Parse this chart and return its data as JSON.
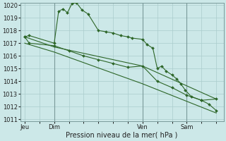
{
  "background_color": "#cce8e8",
  "grid_color": "#aacccc",
  "line_color": "#2d6628",
  "marker_color": "#2d6628",
  "ylabel_min": 1011,
  "ylabel_max": 1020,
  "yticks": [
    1011,
    1012,
    1013,
    1014,
    1015,
    1016,
    1017,
    1018,
    1019,
    1020
  ],
  "xlabel": "Pression niveau de la mer( hPa )",
  "day_labels": [
    "Jeu",
    "Dim",
    "Ven",
    "Sam"
  ],
  "day_positions": [
    0,
    2,
    8,
    11
  ],
  "vline_positions": [
    2,
    8,
    11
  ],
  "series1_x": [
    0,
    0.3,
    2.0,
    2.3,
    2.6,
    2.9,
    3.2,
    3.5,
    3.9,
    4.3,
    5.0,
    5.5,
    6.0,
    6.5,
    7.0,
    7.3,
    8.0,
    8.3,
    8.7,
    9.0,
    9.3,
    9.6,
    10.0,
    10.3,
    10.6,
    10.9,
    11.3,
    12.0,
    12.5,
    13.0
  ],
  "series1_y": [
    1017.5,
    1017.6,
    1017.0,
    1019.5,
    1019.7,
    1019.4,
    1020.1,
    1020.2,
    1019.6,
    1019.3,
    1018.0,
    1017.9,
    1017.8,
    1017.6,
    1017.5,
    1017.4,
    1017.3,
    1016.9,
    1016.6,
    1015.0,
    1015.2,
    1014.8,
    1014.5,
    1014.2,
    1013.8,
    1013.3,
    1012.8,
    1012.5,
    1012.2,
    1011.7
  ],
  "series2_x": [
    0,
    0.3,
    2.0,
    3.0,
    4.0,
    5.0,
    6.0,
    7.0,
    8.0,
    9.0,
    10.0,
    11.0,
    12.0,
    13.0
  ],
  "series2_y": [
    1017.5,
    1017.0,
    1016.8,
    1016.4,
    1016.0,
    1015.7,
    1015.4,
    1015.1,
    1015.2,
    1014.0,
    1013.5,
    1012.9,
    1012.5,
    1012.6
  ],
  "series3_x": [
    0,
    2,
    8,
    13
  ],
  "series3_y": [
    1017.5,
    1016.7,
    1015.2,
    1012.6
  ],
  "series4_x": [
    0,
    2,
    8,
    13
  ],
  "series4_y": [
    1017.0,
    1016.3,
    1013.8,
    1011.5
  ]
}
